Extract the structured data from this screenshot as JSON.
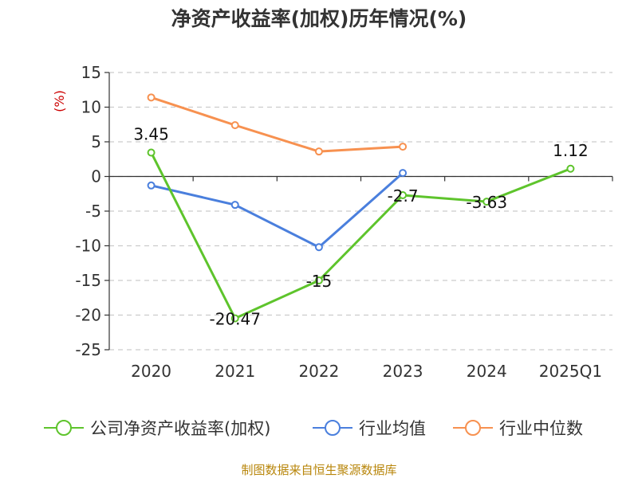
{
  "source_note": "制图数据来自恒生聚源数据库",
  "colors": {
    "text": "#333333",
    "grid": "#cccccc",
    "axis": "#333333",
    "ylabel": "#cc0000",
    "source": "#b8860b"
  },
  "chart_data": {
    "type": "line",
    "title": "净资产收益率(加权)历年情况(%)",
    "xlabel": "",
    "ylabel": "(%)",
    "categories": [
      "2020",
      "2021",
      "2022",
      "2023",
      "2024",
      "2025Q1"
    ],
    "yticks": [
      "15",
      "10",
      "5",
      "0",
      "-5",
      "-10",
      "-15",
      "-20",
      "-25"
    ],
    "ylim": [
      -25,
      15
    ],
    "grid": true,
    "legend_position": "bottom",
    "series": [
      {
        "name": "公司净资产收益率(加权)",
        "color": "#5ec42c",
        "values": [
          3.45,
          -20.47,
          -15,
          -2.7,
          -3.63,
          1.12
        ],
        "labels": [
          "3.45",
          "-20.47",
          "-15",
          "-2.7",
          "-3.63",
          "1.12"
        ]
      },
      {
        "name": "行业均值",
        "color": "#4a7fdd",
        "values": [
          -1.3,
          -4.1,
          -10.2,
          0.5,
          null,
          null
        ]
      },
      {
        "name": "行业中位数",
        "color": "#f79150",
        "values": [
          11.4,
          7.4,
          3.6,
          4.3,
          null,
          null
        ]
      }
    ]
  }
}
